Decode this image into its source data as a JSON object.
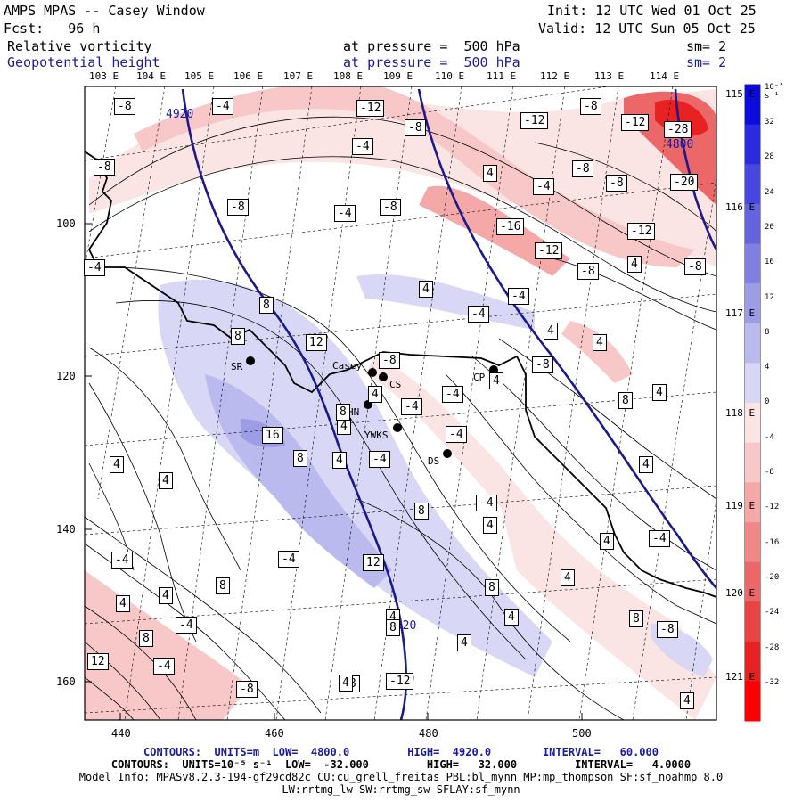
{
  "header": {
    "model": "AMPS MPAS -- Casey Window",
    "init": "Init: 12 UTC Wed 01 Oct 25",
    "fcst": "Fcst:   96 h",
    "valid": "Valid: 12 UTC Sun 05 Oct 25",
    "field1": "Relative vorticity",
    "pressure1": "at pressure =  500 hPa",
    "sm1": "sm= 2",
    "field2": "Geopotential height",
    "pressure2": "at pressure =  500 hPa",
    "sm2": "sm= 2"
  },
  "top_lon_labels": [
    "103 E",
    "104 E",
    "105 E",
    "106 E",
    "107 E",
    "108 E",
    "109 E",
    "110 E",
    "111 E",
    "112 E",
    "113 E",
    "114 E"
  ],
  "right_lat_labels": [
    "115 E",
    "116 E",
    "117 E",
    "118 E",
    "119 E",
    "120 E",
    "121 E"
  ],
  "x_ticks": [
    "440",
    "460",
    "480",
    "500"
  ],
  "y_ticks": [
    "100",
    "120",
    "140",
    "160"
  ],
  "colorbar": {
    "unit_label": "10⁻⁵ s⁻¹",
    "labels": [
      "32",
      "28",
      "24",
      "20",
      "16",
      "12",
      "8",
      "4",
      "0",
      "-4",
      "-8",
      "-12",
      "-16",
      "-20",
      "-24",
      "-28",
      "-32"
    ],
    "blues": [
      "#0c0cdc",
      "#2a2ae0",
      "#4848e0",
      "#6464de",
      "#8080e0",
      "#9d9de6",
      "#babaee",
      "#d8d8f6"
    ],
    "reds": [
      "#fbe4e4",
      "#f8c8c8",
      "#f4a8a8",
      "#f08888",
      "#ec6868",
      "#e84444",
      "#e82222",
      "#ff0000"
    ]
  },
  "stations": [
    {
      "name": "SR"
    },
    {
      "name": "Casey"
    },
    {
      "name": "CS"
    },
    {
      "name": "HN"
    },
    {
      "name": "YWKS"
    },
    {
      "name": "CP"
    },
    {
      "name": "DS"
    }
  ],
  "height_contours": {
    "label": "4920",
    "label_4800": "4800",
    "color": "#1a1a8c"
  },
  "contour_labels": [
    "-8",
    "4920",
    "-4",
    "-12",
    "-8",
    "-12",
    "-8",
    "-12",
    "-28",
    "4800",
    "-8",
    "-4",
    "-4",
    "-8",
    "-4",
    "-8",
    "4",
    "-8",
    "-20",
    "-4",
    "-8",
    "-16",
    "-12",
    "-4",
    "4",
    "-12",
    "-8",
    "4",
    "-8",
    "8",
    "-4",
    "8",
    "12",
    "4",
    "4",
    "4",
    "-8",
    "8",
    "4",
    "-8",
    "4",
    "-4",
    "-4",
    "4",
    "4",
    "-4",
    "4",
    "16",
    "4",
    "8",
    "4",
    "8",
    "4",
    "-4",
    "4",
    "-4",
    "12",
    "8",
    "-4",
    "4",
    "4",
    "8",
    "4",
    "8",
    "4",
    "8",
    "-4",
    "-8",
    "12",
    "-4",
    "4",
    "-8",
    "-8",
    "4",
    "8",
    "-12",
    "4920",
    "4",
    "-4",
    "4920",
    "4",
    "8",
    "-4"
  ],
  "footer": {
    "line1": "CONTOURS:  UNITS=m  LOW=  4800.0         HIGH=  4920.0        INTERVAL=   60.000",
    "line2": "CONTOURS:  UNITS=10⁻⁵ s⁻¹  LOW=  -32.000         HIGH=   32.000         INTERVAL=   4.0000",
    "line3": "Model Info: MPASv8.2.3-194-gf29cd82c CU:cu_grell_freitas PBL:bl_mynn MP:mp_thompson SF:sf_noahmp 8.0",
    "line4": "LW:rrtmg_lw SW:rrtmg_sw SFLAY:sf_mynn"
  }
}
